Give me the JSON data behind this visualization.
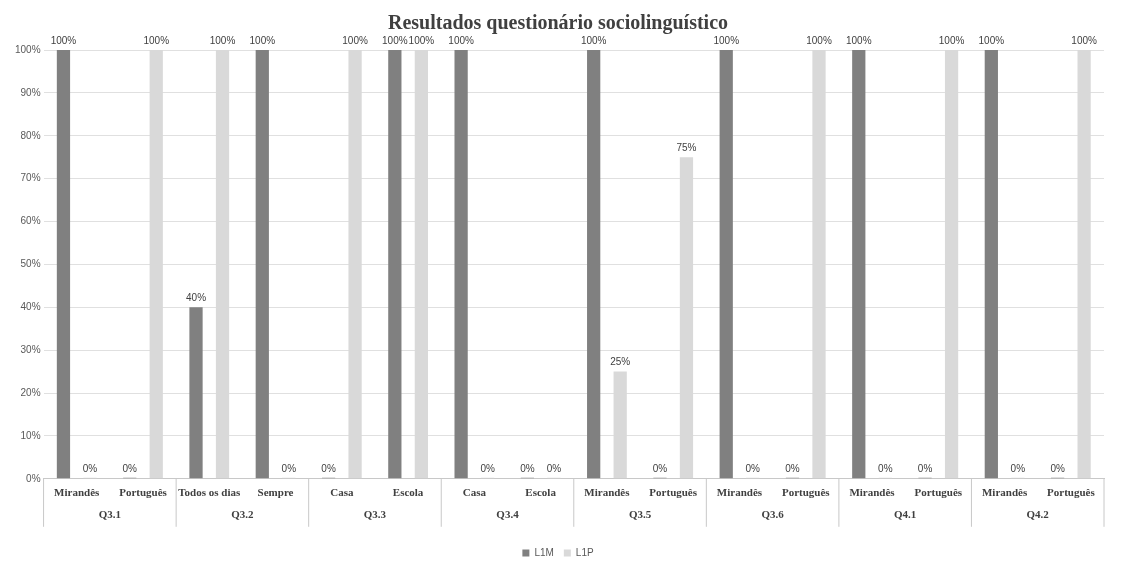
{
  "chart_data": {
    "type": "bar",
    "title": "Resultados questionário sociolinguístico",
    "categories": [
      "Mirandês",
      "Português",
      "Todos os dias",
      "Sempre",
      "Casa",
      "Escola",
      "Casa",
      "Escola",
      "Mirandês",
      "Português",
      "Mirandês",
      "Português",
      "Mirandês",
      "Português",
      "Mirandês",
      "Português"
    ],
    "series": [
      {
        "name": "L1M",
        "color": "#808080",
        "values": [
          100,
          0,
          40,
          100,
          0,
          100,
          100,
          0,
          100,
          0,
          100,
          0,
          100,
          0,
          100,
          0
        ],
        "value_labels": [
          "100%",
          "0%",
          "40%",
          "100%",
          "0%",
          "100%",
          "100%",
          "0%",
          "100%",
          "0%",
          "100%",
          "0%",
          "100%",
          "0%",
          "100%",
          "0%"
        ]
      },
      {
        "name": "L1P",
        "color": "#d9d9d9",
        "values": [
          0,
          100,
          100,
          0,
          100,
          100,
          0,
          0,
          25,
          75,
          0,
          100,
          0,
          100,
          0,
          100
        ],
        "value_labels": [
          "0%",
          "100%",
          "100%",
          "0%",
          "100%",
          "100%",
          "0%",
          "0%",
          "25%",
          "75%",
          "0%",
          "100%",
          "0%",
          "100%",
          "0%",
          "100%"
        ]
      }
    ],
    "annotations": [
      "Q3.1",
      "Q3.2",
      "Q3.3",
      "Q3.4",
      "Q3.5",
      "Q3.6",
      "Q4.1",
      "Q4.2"
    ],
    "ylim": [
      0,
      100
    ],
    "yticks": [
      {
        "value": 0,
        "label": "0%"
      },
      {
        "value": 10,
        "label": "10%"
      },
      {
        "value": 20,
        "label": "20%"
      },
      {
        "value": 30,
        "label": "30%"
      },
      {
        "value": 40,
        "label": "40%"
      },
      {
        "value": 50,
        "label": "50%"
      },
      {
        "value": 60,
        "label": "60%"
      },
      {
        "value": 70,
        "label": "70%"
      },
      {
        "value": 80,
        "label": "80%"
      },
      {
        "value": 90,
        "label": "90%"
      },
      {
        "value": 100,
        "label": "100%"
      }
    ],
    "grid": "y",
    "legend": "bottom"
  }
}
